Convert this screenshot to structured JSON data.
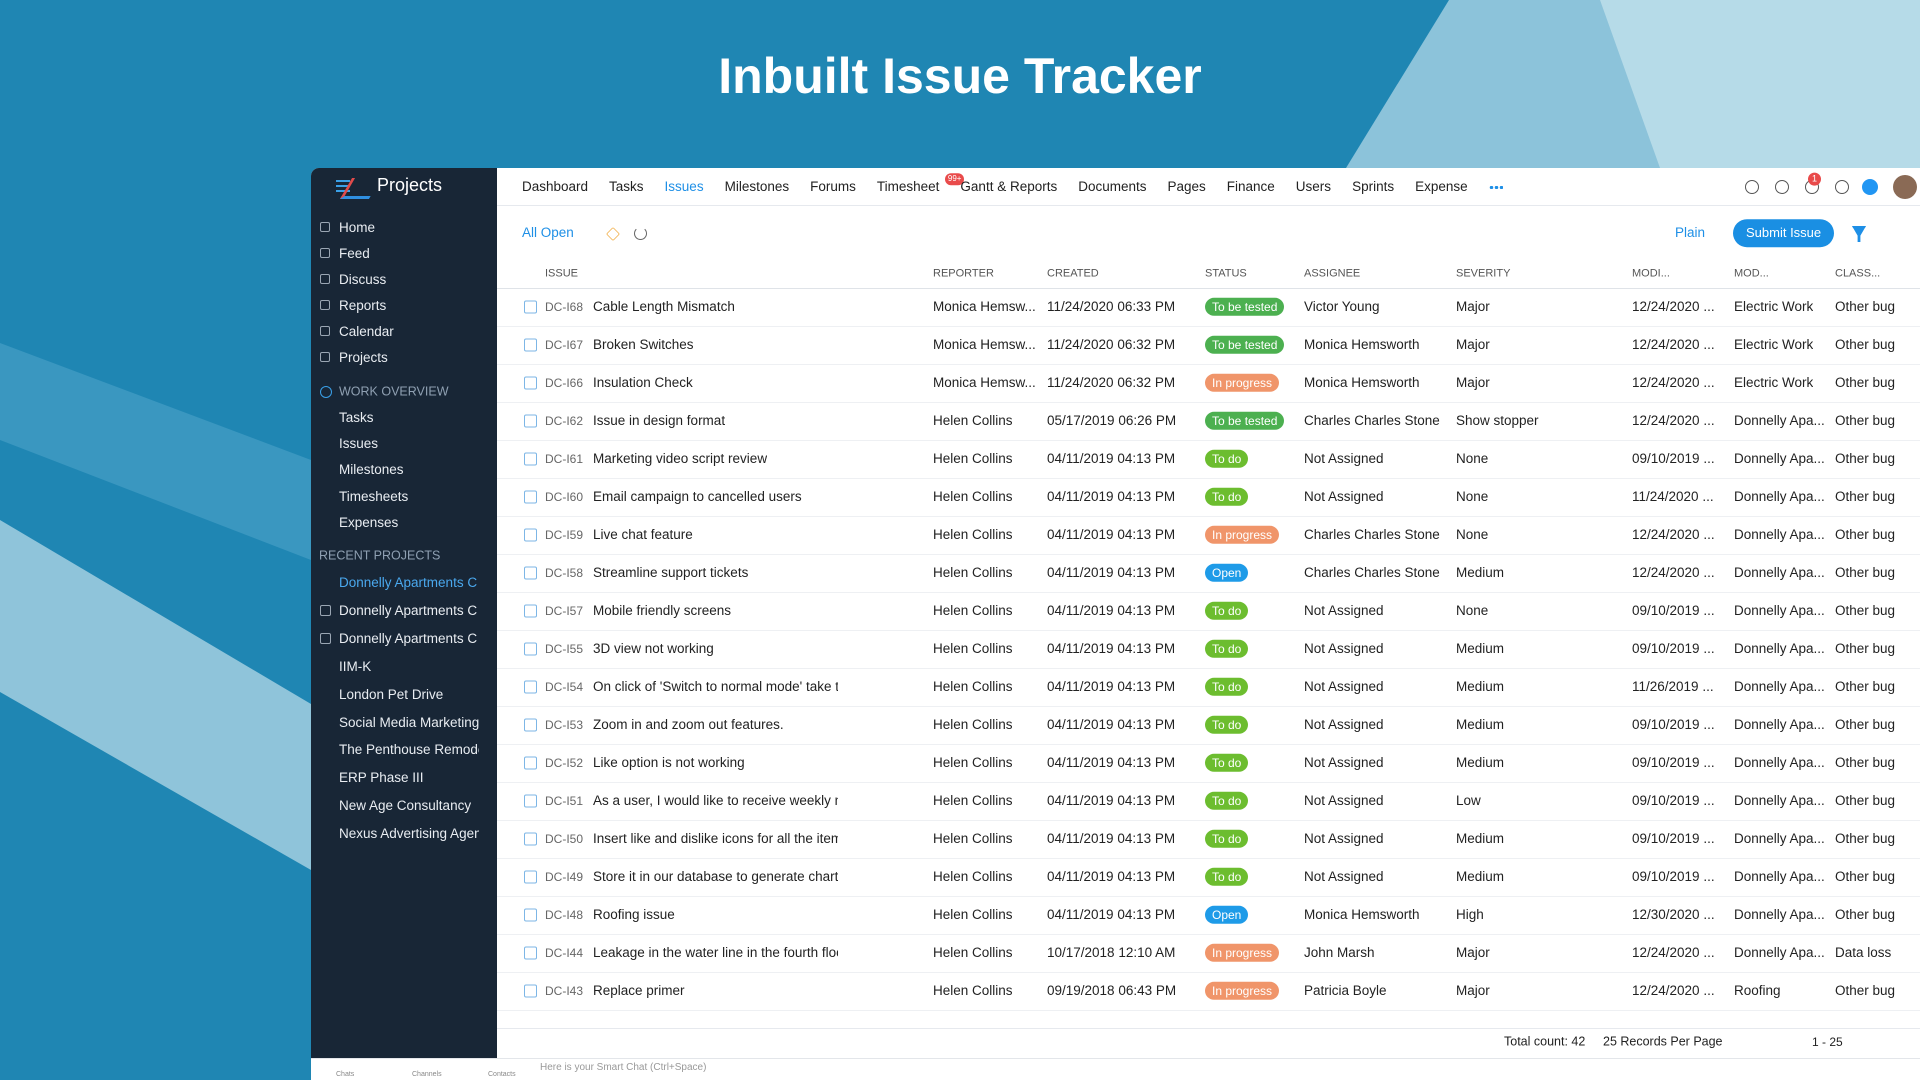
{
  "banner": {
    "title": "Inbuilt Issue Tracker"
  },
  "app": {
    "name": "Projects"
  },
  "nav": {
    "items": [
      "Dashboard",
      "Tasks",
      "Issues",
      "Milestones",
      "Forums",
      "Timesheet",
      "Gantt & Reports",
      "Documents",
      "Pages",
      "Finance",
      "Users",
      "Sprints",
      "Expense"
    ],
    "timesheet_badge": "99+",
    "bell_badge": "1"
  },
  "sidebar": {
    "main": [
      "Home",
      "Feed",
      "Discuss",
      "Reports",
      "Calendar",
      "Projects"
    ],
    "work_overview": {
      "title": "WORK OVERVIEW",
      "items": [
        "Tasks",
        "Issues",
        "Milestones",
        "Timesheets",
        "Expenses"
      ]
    },
    "recent_projects": {
      "title": "RECENT PROJECTS",
      "items": [
        "Donnelly Apartments C",
        "Donnelly Apartments C",
        "Donnelly Apartments C",
        "IIM-K",
        "London Pet Drive",
        "Social Media Marketing",
        "The Penthouse Remode",
        "ERP Phase III",
        "New Age Consultancy",
        "Nexus Advertising Agen"
      ]
    }
  },
  "toolbar": {
    "view": "All Open",
    "layout": "Plain",
    "submit": "Submit Issue"
  },
  "table": {
    "columns": [
      "ISSUE",
      "REPORTER",
      "CREATED",
      "STATUS",
      "ASSIGNEE",
      "SEVERITY",
      "MODI...",
      "MOD...",
      "CLASS..."
    ],
    "rows": [
      {
        "id": "DC-I68",
        "title": "Cable Length Mismatch",
        "reporter": "Monica Hemsw...",
        "created": "11/24/2020 06:33 PM",
        "status": "To be tested",
        "status_color": "#4cb050",
        "assignee": "Victor Young",
        "severity": "Major",
        "modified": "12/24/2020 ...",
        "module": "Electric Work",
        "classification": "Other bug"
      },
      {
        "id": "DC-I67",
        "title": "Broken Switches",
        "reporter": "Monica Hemsw...",
        "created": "11/24/2020 06:32 PM",
        "status": "To be tested",
        "status_color": "#4cb050",
        "assignee": "Monica Hemsworth",
        "severity": "Major",
        "modified": "12/24/2020 ...",
        "module": "Electric Work",
        "classification": "Other bug"
      },
      {
        "id": "DC-I66",
        "title": "Insulation Check",
        "reporter": "Monica Hemsw...",
        "created": "11/24/2020 06:32 PM",
        "status": "In progress",
        "status_color": "#f0956a",
        "assignee": "Monica Hemsworth",
        "severity": "Major",
        "modified": "12/24/2020 ...",
        "module": "Electric Work",
        "classification": "Other bug"
      },
      {
        "id": "DC-I62",
        "title": "Issue in design format",
        "reporter": "Helen Collins",
        "created": "05/17/2019 06:26 PM",
        "status": "To be tested",
        "status_color": "#4cb050",
        "assignee": "Charles Charles Stone",
        "severity": "Show stopper",
        "modified": "12/24/2020 ...",
        "module": "Donnelly Apa...",
        "classification": "Other bug"
      },
      {
        "id": "DC-I61",
        "title": "Marketing video script review",
        "reporter": "Helen Collins",
        "created": "04/11/2019 04:13 PM",
        "status": "To do",
        "status_color": "#6cbd2f",
        "assignee": "Not Assigned",
        "severity": "None",
        "modified": "09/10/2019 ...",
        "module": "Donnelly Apa...",
        "classification": "Other bug"
      },
      {
        "id": "DC-I60",
        "title": "Email campaign to cancelled users",
        "reporter": "Helen Collins",
        "created": "04/11/2019 04:13 PM",
        "status": "To do",
        "status_color": "#6cbd2f",
        "assignee": "Not Assigned",
        "severity": "None",
        "modified": "11/24/2020 ...",
        "module": "Donnelly Apa...",
        "classification": "Other bug"
      },
      {
        "id": "DC-I59",
        "title": "Live chat feature",
        "reporter": "Helen Collins",
        "created": "04/11/2019 04:13 PM",
        "status": "In progress",
        "status_color": "#f0956a",
        "assignee": "Charles Charles Stone",
        "severity": "None",
        "modified": "12/24/2020 ...",
        "module": "Donnelly Apa...",
        "classification": "Other bug"
      },
      {
        "id": "DC-I58",
        "title": "Streamline support tickets",
        "reporter": "Helen Collins",
        "created": "04/11/2019 04:13 PM",
        "status": "Open",
        "status_color": "#1e9be8",
        "assignee": "Charles Charles Stone",
        "severity": "Medium",
        "modified": "12/24/2020 ...",
        "module": "Donnelly Apa...",
        "classification": "Other bug"
      },
      {
        "id": "DC-I57",
        "title": "Mobile friendly screens",
        "reporter": "Helen Collins",
        "created": "04/11/2019 04:13 PM",
        "status": "To do",
        "status_color": "#6cbd2f",
        "assignee": "Not Assigned",
        "severity": "None",
        "modified": "09/10/2019 ...",
        "module": "Donnelly Apa...",
        "classification": "Other bug"
      },
      {
        "id": "DC-I55",
        "title": "3D view not working",
        "reporter": "Helen Collins",
        "created": "04/11/2019 04:13 PM",
        "status": "To do",
        "status_color": "#6cbd2f",
        "assignee": "Not Assigned",
        "severity": "Medium",
        "modified": "09/10/2019 ...",
        "module": "Donnelly Apa...",
        "classification": "Other bug"
      },
      {
        "id": "DC-I54",
        "title": "On click of 'Switch to normal mode' take th",
        "reporter": "Helen Collins",
        "created": "04/11/2019 04:13 PM",
        "status": "To do",
        "status_color": "#6cbd2f",
        "assignee": "Not Assigned",
        "severity": "Medium",
        "modified": "11/26/2019 ...",
        "module": "Donnelly Apa...",
        "classification": "Other bug"
      },
      {
        "id": "DC-I53",
        "title": "Zoom in and zoom out features.",
        "reporter": "Helen Collins",
        "created": "04/11/2019 04:13 PM",
        "status": "To do",
        "status_color": "#6cbd2f",
        "assignee": "Not Assigned",
        "severity": "Medium",
        "modified": "09/10/2019 ...",
        "module": "Donnelly Apa...",
        "classification": "Other bug"
      },
      {
        "id": "DC-I52",
        "title": "Like option is not working",
        "reporter": "Helen Collins",
        "created": "04/11/2019 04:13 PM",
        "status": "To do",
        "status_color": "#6cbd2f",
        "assignee": "Not Assigned",
        "severity": "Medium",
        "modified": "09/10/2019 ...",
        "module": "Donnelly Apa...",
        "classification": "Other bug"
      },
      {
        "id": "DC-I51",
        "title": "As a user, I would like to receive weekly ma",
        "reporter": "Helen Collins",
        "created": "04/11/2019 04:13 PM",
        "status": "To do",
        "status_color": "#6cbd2f",
        "assignee": "Not Assigned",
        "severity": "Low",
        "modified": "09/10/2019 ...",
        "module": "Donnelly Apa...",
        "classification": "Other bug"
      },
      {
        "id": "DC-I50",
        "title": "Insert like and dislike icons for all the items",
        "reporter": "Helen Collins",
        "created": "04/11/2019 04:13 PM",
        "status": "To do",
        "status_color": "#6cbd2f",
        "assignee": "Not Assigned",
        "severity": "Medium",
        "modified": "09/10/2019 ...",
        "module": "Donnelly Apa...",
        "classification": "Other bug"
      },
      {
        "id": "DC-I49",
        "title": "Store it in our database to generate charts",
        "reporter": "Helen Collins",
        "created": "04/11/2019 04:13 PM",
        "status": "To do",
        "status_color": "#6cbd2f",
        "assignee": "Not Assigned",
        "severity": "Medium",
        "modified": "09/10/2019 ...",
        "module": "Donnelly Apa...",
        "classification": "Other bug"
      },
      {
        "id": "DC-I48",
        "title": "Roofing issue",
        "reporter": "Helen Collins",
        "created": "04/11/2019 04:13 PM",
        "status": "Open",
        "status_color": "#1e9be8",
        "assignee": "Monica Hemsworth",
        "severity": "High",
        "modified": "12/30/2020 ...",
        "module": "Donnelly Apa...",
        "classification": "Other bug"
      },
      {
        "id": "DC-I44",
        "title": "Leakage in the water line in the fourth floo",
        "reporter": "Helen Collins",
        "created": "10/17/2018 12:10 AM",
        "status": "In progress",
        "status_color": "#f0956a",
        "assignee": "John Marsh",
        "severity": "Major",
        "modified": "12/24/2020 ...",
        "module": "Donnelly Apa...",
        "classification": "Data loss"
      },
      {
        "id": "DC-I43",
        "title": "Replace primer",
        "reporter": "Helen Collins",
        "created": "09/19/2018 06:43 PM",
        "status": "In progress",
        "status_color": "#f0956a",
        "assignee": "Patricia Boyle",
        "severity": "Major",
        "modified": "12/24/2020 ...",
        "module": "Roofing",
        "classification": "Other bug"
      }
    ]
  },
  "footer": {
    "total": "Total count: 42",
    "per_page": "25 Records Per Page",
    "range": "1 - 25"
  },
  "chat": {
    "tabs": [
      "Chats",
      "Channels",
      "Contacts"
    ],
    "placeholder": "Here is your Smart Chat (Ctrl+Space)"
  }
}
